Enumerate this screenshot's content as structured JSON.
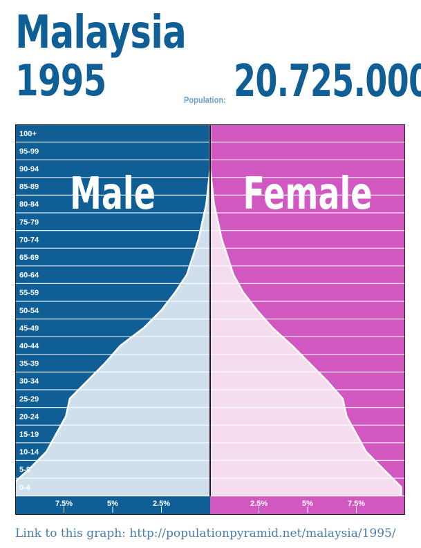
{
  "header": {
    "country": "Malaysia",
    "year": "1995",
    "population_label": "Population:",
    "population_value": "20.725.000"
  },
  "footer": {
    "link_text": "Link to this graph: http://populationpyramid.net/malaysia/1995/"
  },
  "colors": {
    "title": "#0f5f96",
    "male_bg": "#0f5f96",
    "female_bg": "#d157c1",
    "male_fill": "#cfe0ec",
    "female_fill": "#f5dcef"
  },
  "chart_data": {
    "type": "population-pyramid",
    "labels": {
      "male": "Male",
      "female": "Female"
    },
    "age_groups": [
      "100+",
      "95-99",
      "90-94",
      "85-89",
      "80-84",
      "75-79",
      "70-74",
      "65-69",
      "60-64",
      "55-59",
      "50-54",
      "45-49",
      "40-44",
      "35-39",
      "30-34",
      "25-29",
      "20-24",
      "15-19",
      "10-14",
      "5-9",
      "0-4"
    ],
    "male": [
      0.0,
      0.0,
      0.0,
      0.1,
      0.2,
      0.4,
      0.6,
      0.9,
      1.2,
      1.8,
      2.5,
      3.4,
      4.6,
      5.4,
      6.3,
      7.2,
      7.4,
      7.9,
      8.4,
      9.3,
      10.3
    ],
    "female": [
      0.0,
      0.0,
      0.0,
      0.1,
      0.2,
      0.4,
      0.6,
      0.9,
      1.2,
      1.7,
      2.4,
      3.2,
      4.2,
      5.1,
      6.0,
      6.8,
      7.0,
      7.5,
      8.0,
      8.9,
      9.8
    ],
    "x_ticks": [
      -7.5,
      -5,
      -2.5,
      2.5,
      5,
      7.5
    ],
    "x_tick_labels": [
      "7.5%",
      "5%",
      "2.5%",
      "2.5%",
      "5%",
      "7.5%"
    ],
    "xlim": [
      -10,
      10
    ],
    "unit": "%"
  }
}
